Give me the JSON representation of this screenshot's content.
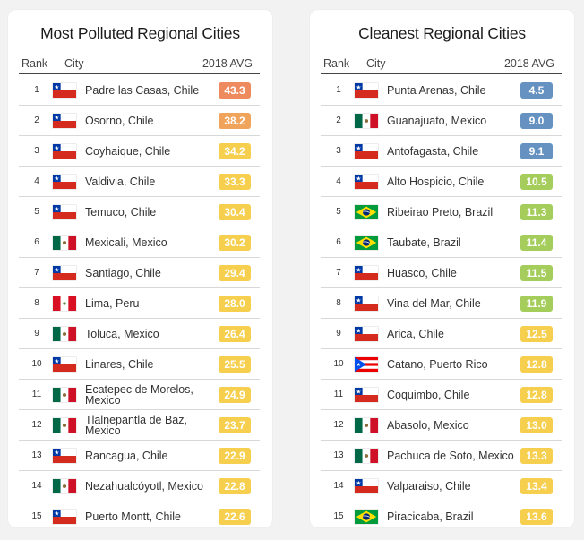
{
  "colors": {
    "red": "#ee8b5e",
    "orange": "#f0a35a",
    "yellow": "#f6cf4e",
    "green": "#a5cd5c",
    "blue": "#6592c0"
  },
  "polluted": {
    "title": "Most Polluted Regional Cities",
    "header": {
      "rank": "Rank",
      "city": "City",
      "avg": "2018 AVG"
    },
    "rows": [
      {
        "rank": "1",
        "flag": "chile",
        "city": "Padre las Casas, Chile",
        "avg": "43.3",
        "color": "#ee8b5e"
      },
      {
        "rank": "2",
        "flag": "chile",
        "city": "Osorno, Chile",
        "avg": "38.2",
        "color": "#f0a35a"
      },
      {
        "rank": "3",
        "flag": "chile",
        "city": "Coyhaique, Chile",
        "avg": "34.2",
        "color": "#f6cf4e"
      },
      {
        "rank": "4",
        "flag": "chile",
        "city": "Valdivia, Chile",
        "avg": "33.3",
        "color": "#f6cf4e"
      },
      {
        "rank": "5",
        "flag": "chile",
        "city": "Temuco, Chile",
        "avg": "30.4",
        "color": "#f6cf4e"
      },
      {
        "rank": "6",
        "flag": "mexico",
        "city": "Mexicali, Mexico",
        "avg": "30.2",
        "color": "#f6cf4e"
      },
      {
        "rank": "7",
        "flag": "chile",
        "city": "Santiago, Chile",
        "avg": "29.4",
        "color": "#f6cf4e"
      },
      {
        "rank": "8",
        "flag": "peru",
        "city": "Lima, Peru",
        "avg": "28.0",
        "color": "#f6cf4e"
      },
      {
        "rank": "9",
        "flag": "mexico",
        "city": "Toluca, Mexico",
        "avg": "26.4",
        "color": "#f6cf4e"
      },
      {
        "rank": "10",
        "flag": "chile",
        "city": "Linares, Chile",
        "avg": "25.5",
        "color": "#f6cf4e"
      },
      {
        "rank": "11",
        "flag": "mexico",
        "city": "Ecatepec de Morelos, Mexico",
        "avg": "24.9",
        "color": "#f6cf4e"
      },
      {
        "rank": "12",
        "flag": "mexico",
        "city": "Tlalnepantla de Baz, Mexico",
        "avg": "23.7",
        "color": "#f6cf4e"
      },
      {
        "rank": "13",
        "flag": "chile",
        "city": "Rancagua, Chile",
        "avg": "22.9",
        "color": "#f6cf4e"
      },
      {
        "rank": "14",
        "flag": "mexico",
        "city": "Nezahualcóyotl, Mexico",
        "avg": "22.8",
        "color": "#f6cf4e"
      },
      {
        "rank": "15",
        "flag": "chile",
        "city": "Puerto Montt, Chile",
        "avg": "22.6",
        "color": "#f6cf4e"
      }
    ]
  },
  "cleanest": {
    "title": "Cleanest Regional Cities",
    "header": {
      "rank": "Rank",
      "city": "City",
      "avg": "2018 AVG"
    },
    "rows": [
      {
        "rank": "1",
        "flag": "chile",
        "city": "Punta Arenas, Chile",
        "avg": "4.5",
        "color": "#6592c0"
      },
      {
        "rank": "2",
        "flag": "mexico",
        "city": "Guanajuato, Mexico",
        "avg": "9.0",
        "color": "#6592c0"
      },
      {
        "rank": "3",
        "flag": "chile",
        "city": "Antofagasta, Chile",
        "avg": "9.1",
        "color": "#6592c0"
      },
      {
        "rank": "4",
        "flag": "chile",
        "city": "Alto Hospicio, Chile",
        "avg": "10.5",
        "color": "#a5cd5c"
      },
      {
        "rank": "5",
        "flag": "brazil",
        "city": "Ribeirao Preto, Brazil",
        "avg": "11.3",
        "color": "#a5cd5c"
      },
      {
        "rank": "6",
        "flag": "brazil",
        "city": "Taubate, Brazil",
        "avg": "11.4",
        "color": "#a5cd5c"
      },
      {
        "rank": "7",
        "flag": "chile",
        "city": "Huasco, Chile",
        "avg": "11.5",
        "color": "#a5cd5c"
      },
      {
        "rank": "8",
        "flag": "chile",
        "city": "Vina del Mar, Chile",
        "avg": "11.9",
        "color": "#a5cd5c"
      },
      {
        "rank": "9",
        "flag": "chile",
        "city": "Arica, Chile",
        "avg": "12.5",
        "color": "#f6cf4e"
      },
      {
        "rank": "10",
        "flag": "puertorico",
        "city": "Catano, Puerto Rico",
        "avg": "12.8",
        "color": "#f6cf4e"
      },
      {
        "rank": "11",
        "flag": "chile",
        "city": "Coquimbo, Chile",
        "avg": "12.8",
        "color": "#f6cf4e"
      },
      {
        "rank": "12",
        "flag": "mexico",
        "city": "Abasolo, Mexico",
        "avg": "13.0",
        "color": "#f6cf4e"
      },
      {
        "rank": "13",
        "flag": "mexico",
        "city": "Pachuca de Soto, Mexico",
        "avg": "13.3",
        "color": "#f6cf4e"
      },
      {
        "rank": "14",
        "flag": "chile",
        "city": "Valparaiso, Chile",
        "avg": "13.4",
        "color": "#f6cf4e"
      },
      {
        "rank": "15",
        "flag": "brazil",
        "city": "Piracicaba, Brazil",
        "avg": "13.6",
        "color": "#f6cf4e"
      }
    ]
  }
}
